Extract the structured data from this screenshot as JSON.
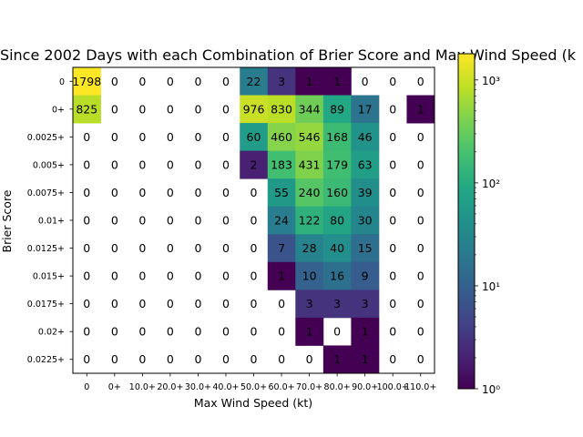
{
  "chart_data": {
    "type": "heatmap",
    "title": "Since 2002 Days with each Combination of Brier Score and Max Wind Speed (k",
    "xlabel": "Max Wind Speed (kt)",
    "ylabel": "Brier Score",
    "x_categories": [
      "0",
      "0+",
      "10.0+",
      "20.0+",
      "30.0+",
      "40.0+",
      "50.0+",
      "60.0+",
      "70.0+",
      "80.0+",
      "90.0+",
      "100.0+",
      "110.0+"
    ],
    "y_categories": [
      "0",
      "0+",
      "0.0025+",
      "0.005+",
      "0.0075+",
      "0.01+",
      "0.0125+",
      "0.015+",
      "0.0175+",
      "0.02+",
      "0.0225+"
    ],
    "values": [
      [
        1798,
        0,
        0,
        0,
        0,
        0,
        22,
        3,
        1,
        1,
        0,
        0,
        0
      ],
      [
        825,
        0,
        0,
        0,
        0,
        0,
        976,
        830,
        344,
        89,
        17,
        0,
        1
      ],
      [
        0,
        0,
        0,
        0,
        0,
        0,
        60,
        460,
        546,
        168,
        46,
        0,
        0
      ],
      [
        0,
        0,
        0,
        0,
        0,
        0,
        2,
        183,
        431,
        179,
        63,
        0,
        0
      ],
      [
        0,
        0,
        0,
        0,
        0,
        0,
        0,
        55,
        240,
        160,
        39,
        0,
        0
      ],
      [
        0,
        0,
        0,
        0,
        0,
        0,
        0,
        24,
        122,
        80,
        30,
        0,
        0
      ],
      [
        0,
        0,
        0,
        0,
        0,
        0,
        0,
        7,
        28,
        40,
        15,
        0,
        0
      ],
      [
        0,
        0,
        0,
        0,
        0,
        0,
        0,
        1,
        10,
        16,
        9,
        0,
        0
      ],
      [
        0,
        0,
        0,
        0,
        0,
        0,
        0,
        0,
        3,
        3,
        3,
        0,
        0
      ],
      [
        0,
        0,
        0,
        0,
        0,
        0,
        0,
        0,
        1,
        0,
        1,
        0,
        0
      ],
      [
        0,
        0,
        0,
        0,
        0,
        0,
        0,
        0,
        0,
        1,
        1,
        0,
        0
      ]
    ],
    "colormap": "viridis",
    "color_scale": "log",
    "color_range": [
      1,
      1798
    ],
    "colorbar_ticks": [
      {
        "value": 1,
        "label": "10⁰"
      },
      {
        "value": 10,
        "label": "10¹"
      },
      {
        "value": 100,
        "label": "10²"
      },
      {
        "value": 1000,
        "label": "10³"
      }
    ],
    "zero_cells": "blank"
  }
}
